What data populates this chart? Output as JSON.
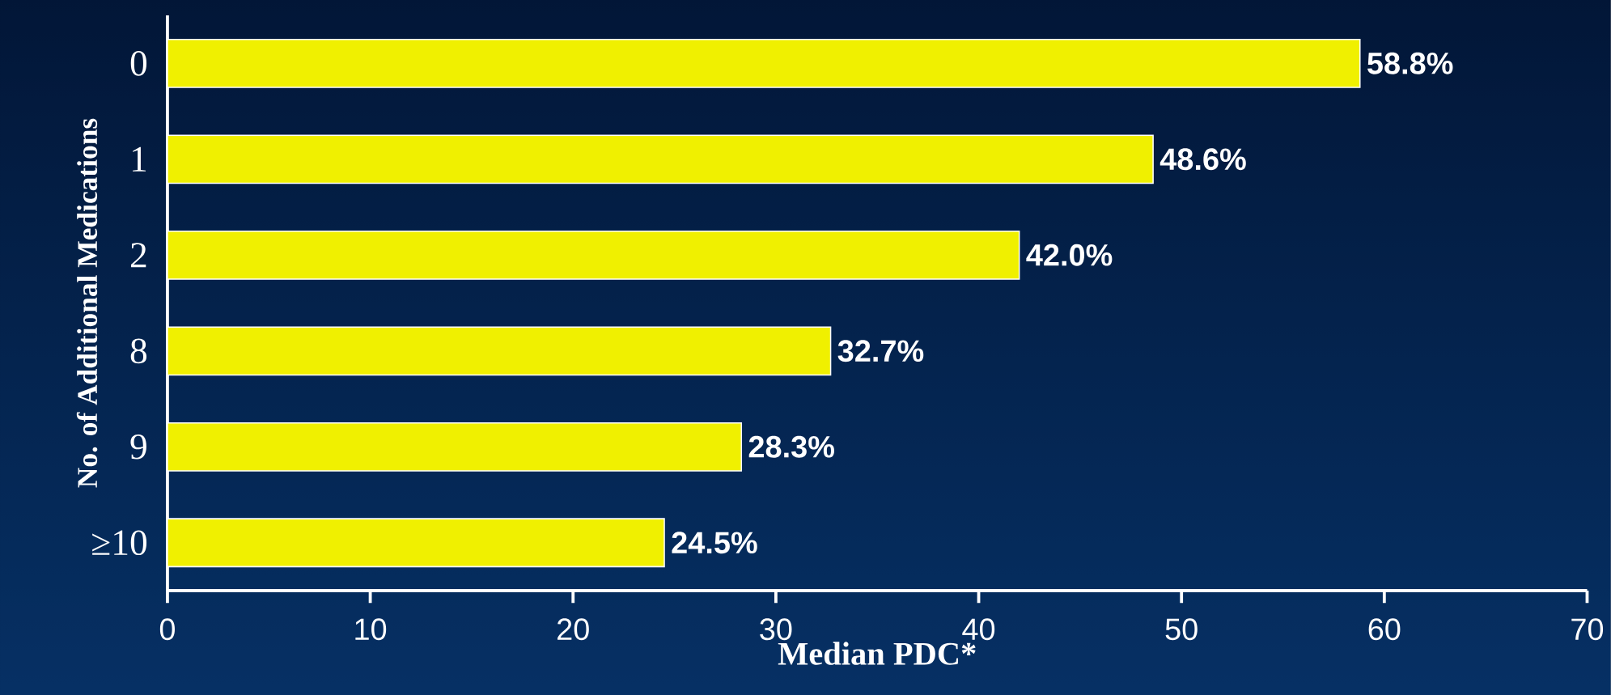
{
  "chart_data": {
    "type": "bar",
    "orientation": "horizontal",
    "xlabel": "Median PDC*",
    "ylabel": "No. of Additional Medications",
    "categories": [
      "0",
      "1",
      "2",
      "8",
      "9",
      "≥10"
    ],
    "values": [
      58.8,
      48.6,
      42.0,
      32.7,
      28.3,
      24.5
    ],
    "value_labels": [
      "58.8%",
      "48.6%",
      "42.0%",
      "32.7%",
      "28.3%",
      "24.5%"
    ],
    "color": "#f0f000",
    "xlim": [
      0,
      70
    ],
    "xticks": [
      0,
      10,
      20,
      30,
      40,
      50,
      60,
      70
    ],
    "grid": false
  }
}
